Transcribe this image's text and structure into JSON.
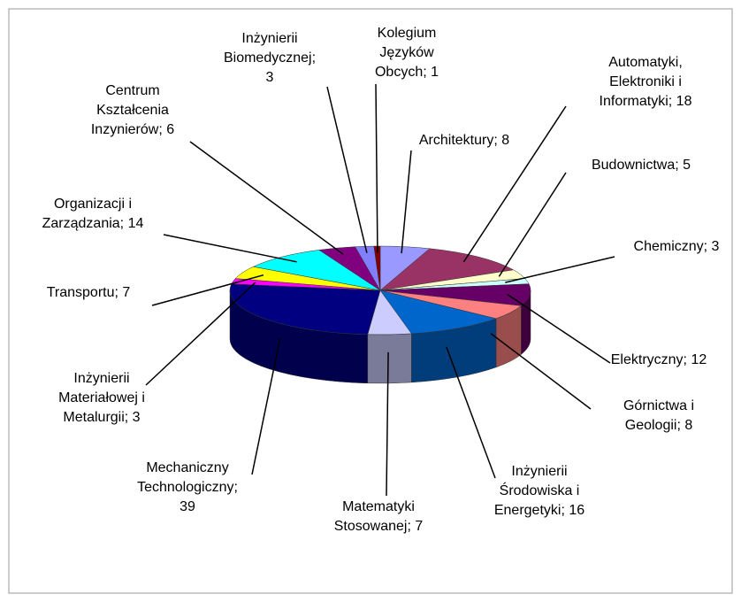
{
  "chart_data": {
    "type": "pie3d",
    "values": [
      8,
      18,
      5,
      3,
      12,
      8,
      16,
      7,
      39,
      3,
      7,
      14,
      6,
      3,
      1
    ],
    "value_labels": [
      "Architektury; 8",
      "Automatyki,\nElektroniki  i\nInformatyki; 18",
      "Budownictwa;  5",
      "Chemiczny; 3",
      "Elektryczny; 12",
      "Górnictwa  i\nGeologii; 8",
      "Inżynierii\nŚrodowiska  i\nEnergetyki; 16",
      "Matematyki\nStosowanej;  7",
      "Mechaniczny\nTechnologiczny;\n39",
      "Inżynierii\nMateriałowej  i\nMetalurgii;  3",
      "Transportu; 7",
      "Organizacji  i\nZarządzania;  14",
      "Centrum\nKształcenia\nInzynierów; 6",
      "Inżynierii\nBiomedycznej;\n3",
      "Kolegium\nJęzyków\nObcych; 1"
    ],
    "colors": [
      "#9999ff",
      "#993366",
      "#ffffcc",
      "#ccffff",
      "#660066",
      "#ff8080",
      "#0066cc",
      "#ccccff",
      "#000080",
      "#ff00ff",
      "#ffff00",
      "#00ffff",
      "#800080",
      "#8080ff",
      "#800000"
    ]
  }
}
